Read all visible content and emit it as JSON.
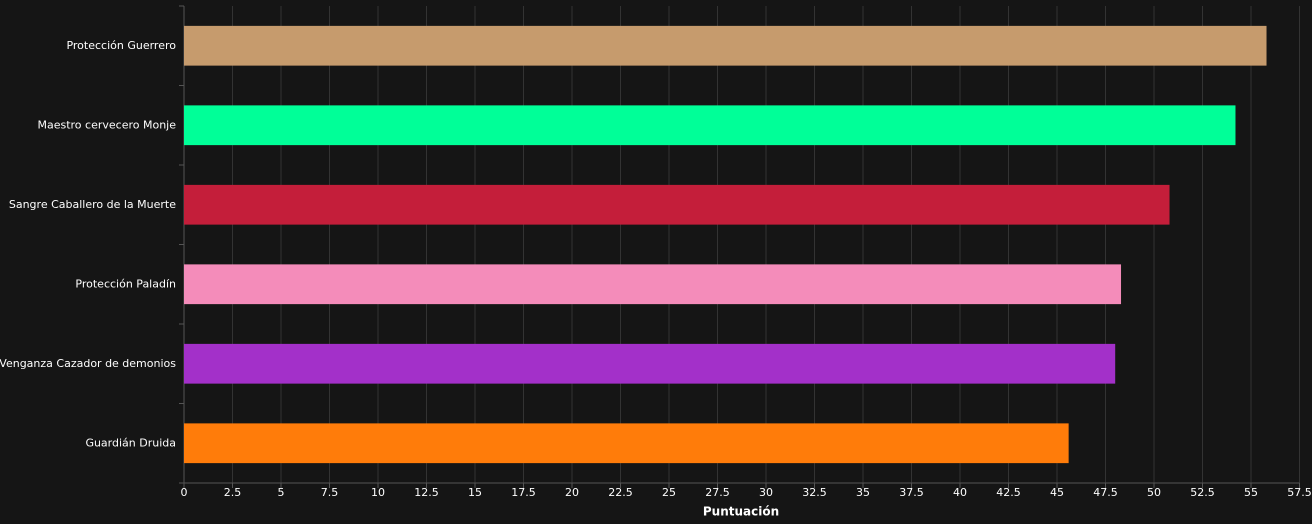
{
  "chart_data": {
    "type": "bar",
    "orientation": "horizontal",
    "x_label": "Puntuación",
    "categories": [
      "Protección Guerrero",
      "Maestro cervecero Monje",
      "Sangre Caballero de la Muerte",
      "Protección Paladín",
      "Venganza Cazador de demonios",
      "Guardián Druida"
    ],
    "values": [
      55.8,
      54.2,
      50.8,
      48.3,
      48.0,
      45.6
    ],
    "colors": [
      "#c69b6d",
      "#00ff98",
      "#c41e3a",
      "#f48cba",
      "#a330c9",
      "#ff7c0a"
    ],
    "xlim": [
      0,
      57.5
    ],
    "xticks": [
      0,
      2.5,
      5,
      7.5,
      10,
      12.5,
      15,
      17.5,
      20,
      22.5,
      25,
      27.5,
      30,
      32.5,
      35,
      37.5,
      40,
      42.5,
      45,
      47.5,
      50,
      52.5,
      55,
      57.5
    ],
    "grid": true
  }
}
